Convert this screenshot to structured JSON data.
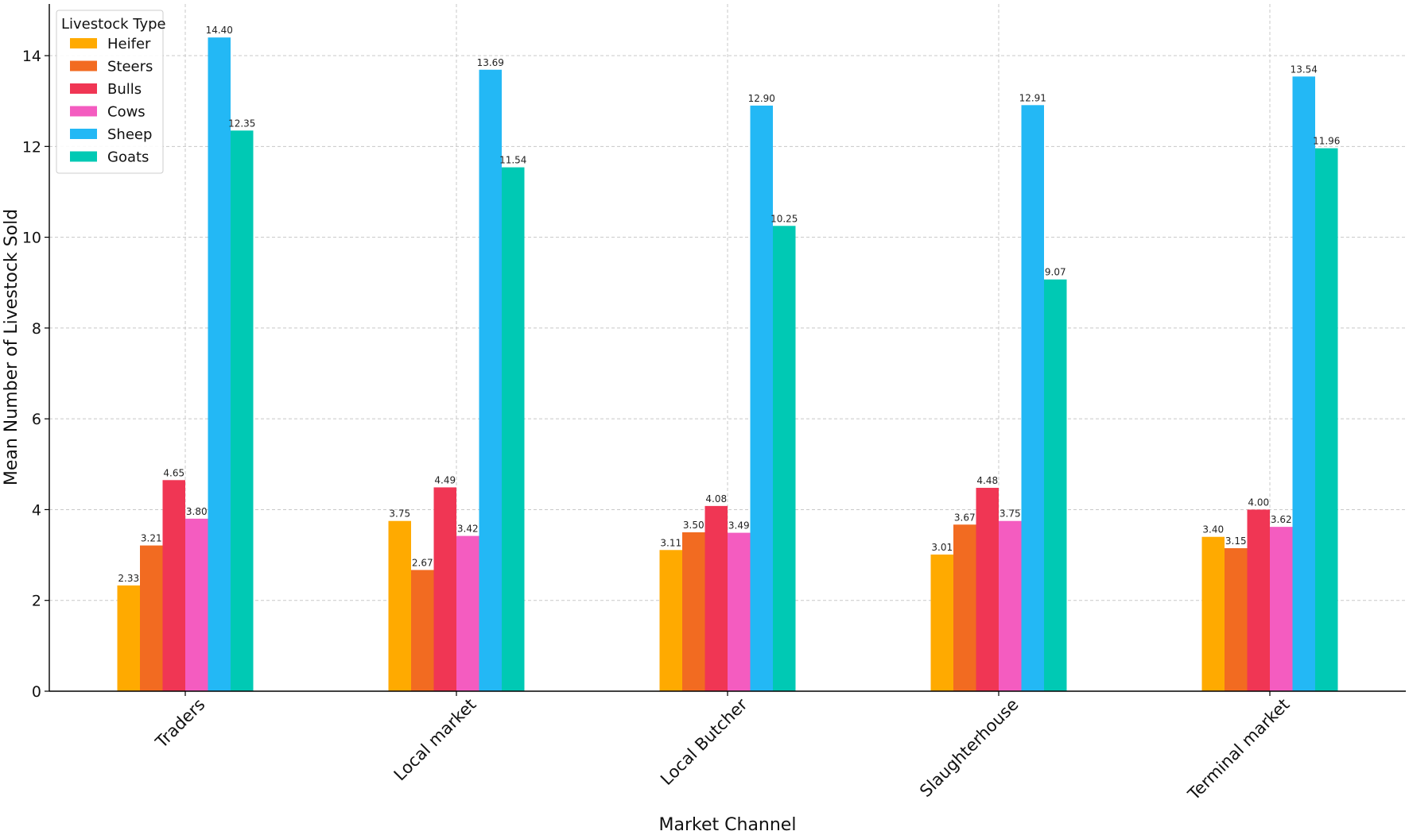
{
  "chart_data": {
    "type": "bar",
    "xlabel": "Market Channel",
    "ylabel": "Mean Number of Livestock Sold",
    "ylim": [
      0,
      15
    ],
    "yticks": [
      0,
      2,
      4,
      6,
      8,
      10,
      12,
      14
    ],
    "grid": true,
    "categories": [
      "Traders",
      "Local market",
      "Local Butcher",
      "Slaughterhouse",
      "Terminal market"
    ],
    "legend": {
      "title": "Livestock Type",
      "placement": "top-left"
    },
    "series": [
      {
        "name": "Heifer",
        "color": "#FFAA00",
        "values": [
          2.33,
          3.75,
          3.11,
          3.01,
          3.4
        ],
        "labels": [
          "2.33",
          "3.75",
          "3.11",
          "3.01",
          "3.40"
        ]
      },
      {
        "name": "Steers",
        "color": "#F26B21",
        "values": [
          3.21,
          2.67,
          3.5,
          3.67,
          3.15
        ],
        "labels": [
          "3.21",
          "2.67",
          "3.50",
          "3.67",
          "3.15"
        ]
      },
      {
        "name": "Bulls",
        "color": "#F03654",
        "values": [
          4.65,
          4.49,
          4.08,
          4.48,
          4.0
        ],
        "labels": [
          "4.65",
          "4.49",
          "4.08",
          "4.48",
          "4.00"
        ]
      },
      {
        "name": "Cows",
        "color": "#F45CC0",
        "values": [
          3.8,
          3.42,
          3.49,
          3.75,
          3.62
        ],
        "labels": [
          "3.80",
          "3.42",
          "3.49",
          "3.75",
          "3.62"
        ]
      },
      {
        "name": "Sheep",
        "color": "#23B8F5",
        "values": [
          14.4,
          13.69,
          12.9,
          12.91,
          13.54
        ],
        "labels": [
          "14.40",
          "13.69",
          "12.90",
          "12.91",
          "13.54"
        ]
      },
      {
        "name": "Goats",
        "color": "#00C9B4",
        "values": [
          12.35,
          11.54,
          10.25,
          9.07,
          11.96
        ],
        "labels": [
          "12.35",
          "11.54",
          "10.25",
          "9.07",
          "11.96"
        ]
      }
    ]
  }
}
